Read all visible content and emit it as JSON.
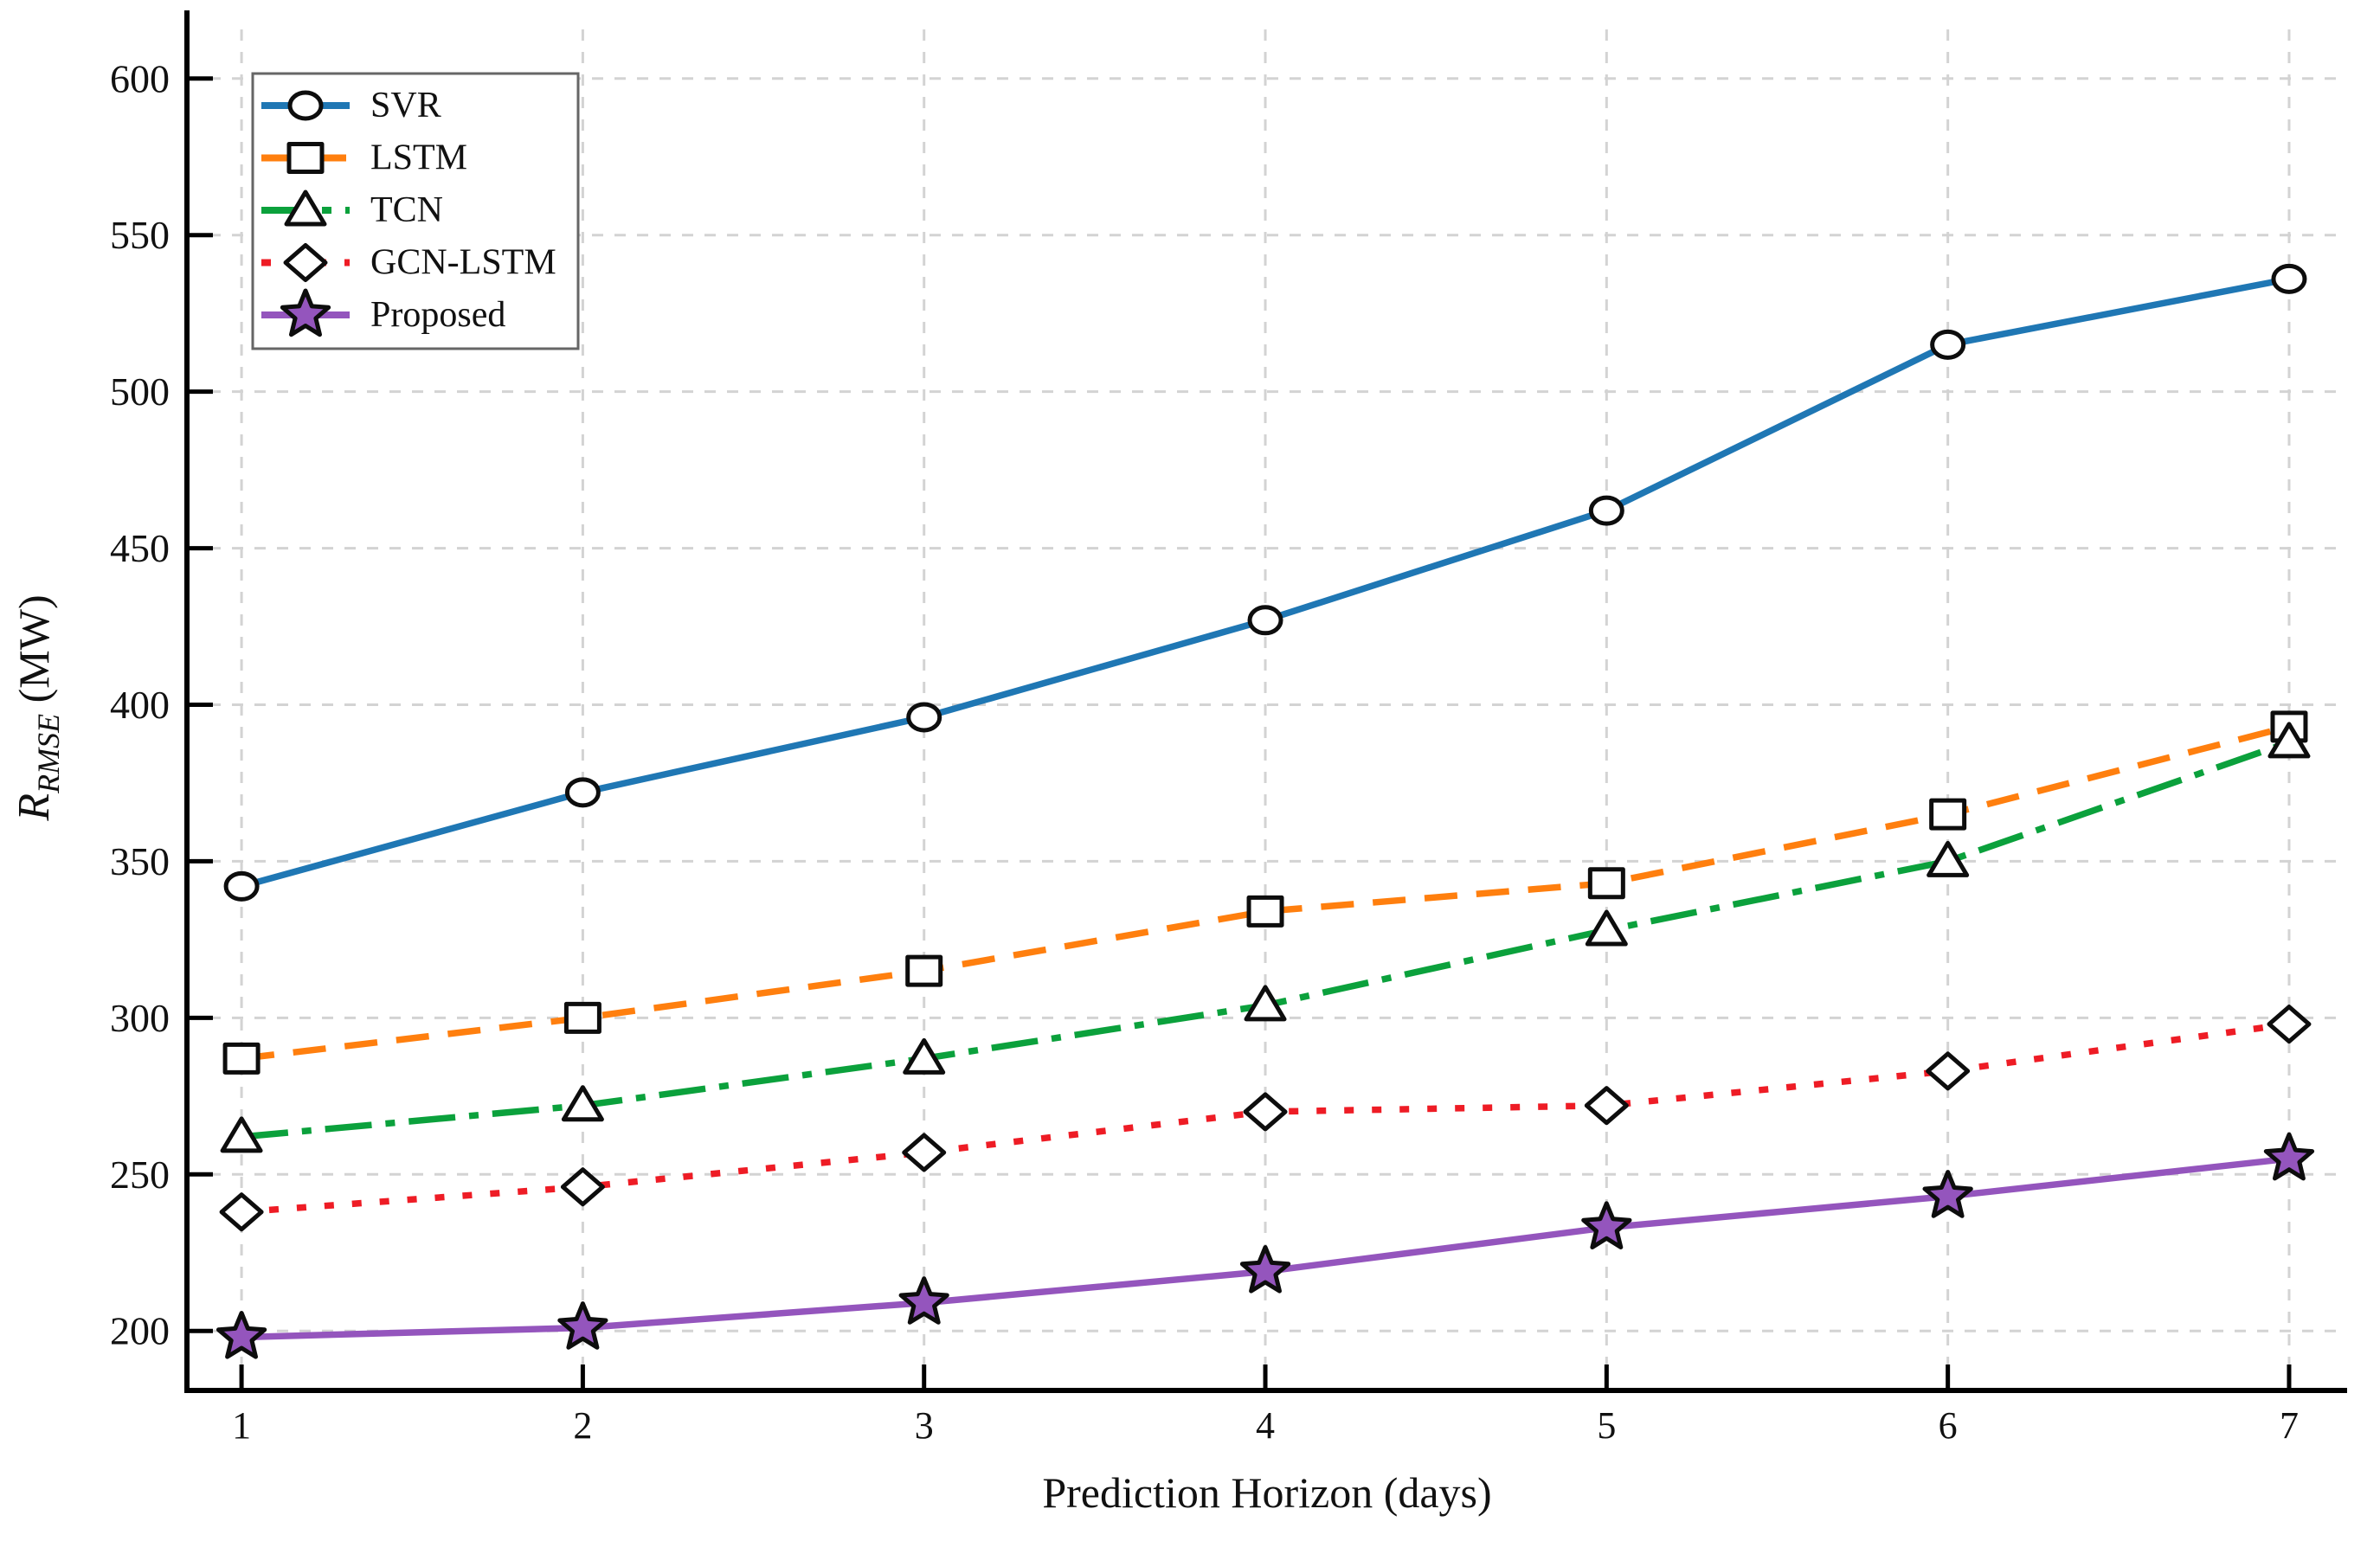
{
  "figure": {
    "background": "#ffffff",
    "grid_color": "#d3d3d3",
    "axis_color": "#000000",
    "legend_border_color": "#666666"
  },
  "chart_data": {
    "type": "line",
    "title": "",
    "xlabel": "Prediction Horizon (days)",
    "ylabel": {
      "symbol": "R",
      "subscript": "RMSE",
      "unit": " (MW)"
    },
    "x": [
      1,
      2,
      3,
      4,
      5,
      6,
      7
    ],
    "xticks": [
      1,
      2,
      3,
      4,
      5,
      6,
      7
    ],
    "yticks": [
      200,
      250,
      300,
      350,
      400,
      450,
      500,
      550,
      600
    ],
    "xlim": [
      0.84,
      7.17
    ],
    "ylim": [
      181,
      619
    ],
    "grid": true,
    "legend_position": "top-left",
    "series": [
      {
        "name": "SVR",
        "color": "#1f77b4",
        "linestyle": "solid",
        "marker": "circle",
        "marker_fill": "#ffffff",
        "values": [
          342,
          372,
          396,
          427,
          462,
          515,
          536
        ]
      },
      {
        "name": "LSTM",
        "color": "#ff7f0e",
        "linestyle": "dashed",
        "marker": "square",
        "marker_fill": "#ffffff",
        "values": [
          287,
          300,
          315,
          334,
          343,
          365,
          393
        ]
      },
      {
        "name": "TCN",
        "color": "#0ba13c",
        "linestyle": "dashdot",
        "marker": "triangle",
        "marker_fill": "#ffffff",
        "values": [
          262,
          272,
          287,
          304,
          328,
          350,
          388
        ]
      },
      {
        "name": "GCN-LSTM",
        "color": "#ee1c25",
        "linestyle": "dotted",
        "marker": "diamond",
        "marker_fill": "#ffffff",
        "values": [
          238,
          246,
          257,
          270,
          272,
          283,
          298
        ]
      },
      {
        "name": "Proposed",
        "color": "#9455bd",
        "linestyle": "solid",
        "marker": "star",
        "marker_fill": "#9455bd",
        "values": [
          198,
          201,
          209,
          219,
          233,
          243,
          255
        ]
      }
    ]
  }
}
